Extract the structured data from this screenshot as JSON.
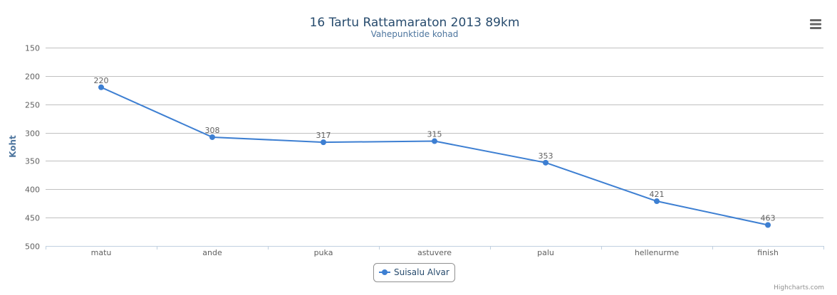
{
  "chart_data": {
    "type": "line",
    "title": "16 Tartu Rattamaraton 2013 89km",
    "subtitle": "Vahepunktide kohad",
    "ylabel": "Koht",
    "categories": [
      "matu",
      "ande",
      "puka",
      "astuvere",
      "palu",
      "hellenurme",
      "finish"
    ],
    "series": [
      {
        "name": "Suisalu Alvar",
        "values": [
          220,
          308,
          317,
          315,
          353,
          421,
          463
        ]
      }
    ],
    "ylim": [
      150,
      500
    ],
    "y_reversed": true,
    "y_ticks": [
      150,
      200,
      250,
      300,
      350,
      400,
      450,
      500
    ],
    "grid": true,
    "legend_position": "bottom-center",
    "color": "#3d7fd2"
  },
  "credits": "Highcharts.com",
  "menu_icon": "hamburger-menu-icon"
}
